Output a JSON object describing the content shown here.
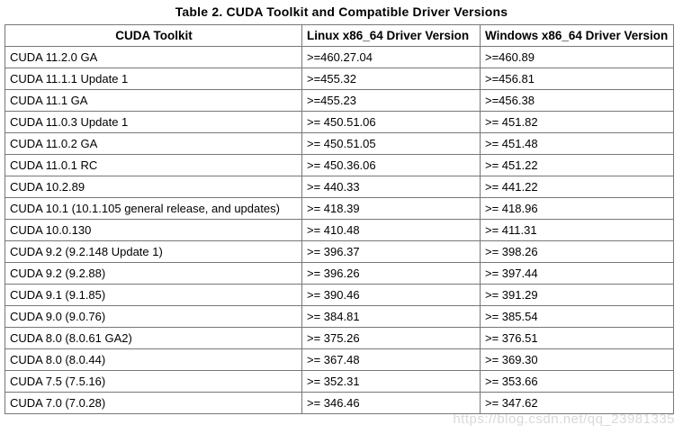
{
  "title": "Table 2. CUDA Toolkit and Compatible Driver Versions",
  "table": {
    "columns": [
      "CUDA Toolkit",
      "Linux x86_64 Driver Version",
      "Windows x86_64 Driver Version"
    ],
    "rows": [
      [
        "CUDA 11.2.0 GA",
        ">=460.27.04",
        ">=460.89"
      ],
      [
        "CUDA 11.1.1 Update 1",
        ">=455.32",
        ">=456.81"
      ],
      [
        "CUDA 11.1 GA",
        ">=455.23",
        ">=456.38"
      ],
      [
        "CUDA 11.0.3 Update 1",
        ">= 450.51.06",
        ">= 451.82"
      ],
      [
        "CUDA 11.0.2 GA",
        ">= 450.51.05",
        ">= 451.48"
      ],
      [
        "CUDA 11.0.1 RC",
        ">= 450.36.06",
        ">= 451.22"
      ],
      [
        "CUDA 10.2.89",
        ">= 440.33",
        ">= 441.22"
      ],
      [
        "CUDA 10.1 (10.1.105 general release, and updates)",
        ">= 418.39",
        ">= 418.96"
      ],
      [
        "CUDA 10.0.130",
        ">= 410.48",
        ">= 411.31"
      ],
      [
        "CUDA 9.2 (9.2.148 Update 1)",
        ">= 396.37",
        ">= 398.26"
      ],
      [
        "CUDA 9.2 (9.2.88)",
        ">= 396.26",
        ">= 397.44"
      ],
      [
        "CUDA 9.1 (9.1.85)",
        ">= 390.46",
        ">= 391.29"
      ],
      [
        "CUDA 9.0 (9.0.76)",
        ">= 384.81",
        ">= 385.54"
      ],
      [
        "CUDA 8.0 (8.0.61 GA2)",
        ">= 375.26",
        ">= 376.51"
      ],
      [
        "CUDA 8.0 (8.0.44)",
        ">= 367.48",
        ">= 369.30"
      ],
      [
        "CUDA 7.5 (7.5.16)",
        ">= 352.31",
        ">= 353.66"
      ],
      [
        "CUDA 7.0 (7.0.28)",
        ">= 346.46",
        ">= 347.62"
      ]
    ]
  },
  "watermark": "https://blog.csdn.net/qq_23981335",
  "colors": {
    "text": "#000000",
    "border": "#777777",
    "background": "#ffffff",
    "watermark": "#d9d9d9"
  }
}
